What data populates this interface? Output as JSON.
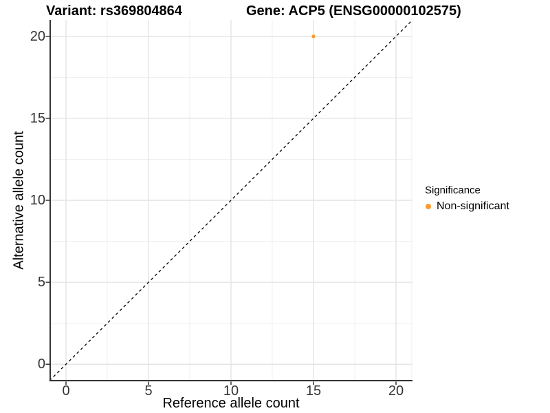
{
  "header": {
    "title_left": "Variant: rs369804864",
    "title_right": "Gene: ACP5 (ENSG00000102575)"
  },
  "chart_data": {
    "type": "scatter",
    "xlabel": "Reference allele count",
    "ylabel": "Alternative allele count",
    "xlim": [
      -1,
      21
    ],
    "ylim": [
      -1,
      21
    ],
    "xticks": [
      0,
      5,
      10,
      15,
      20
    ],
    "yticks": [
      0,
      5,
      10,
      15,
      20
    ],
    "minor_xticks": [
      2.5,
      7.5,
      12.5,
      17.5
    ],
    "minor_yticks": [
      2.5,
      7.5,
      12.5,
      17.5
    ],
    "grid": true,
    "legend_position": "right",
    "points": [
      {
        "x": 15,
        "y": 20,
        "series": "Non-significant"
      }
    ],
    "reference_line": {
      "kind": "identity",
      "style": "dashed"
    }
  },
  "legend": {
    "title": "Significance",
    "items": [
      {
        "label": "Non-significant",
        "color": "#F99B2D"
      }
    ]
  },
  "colors": {
    "point": "#F99B2D",
    "grid_major": "#E3E3E3",
    "grid_minor": "#EFEFEF",
    "panel_edge": "#ECECEC",
    "axis_line": "#333333",
    "tick": "#333333",
    "tick_label": "#333333",
    "identity_line": "#000000"
  }
}
